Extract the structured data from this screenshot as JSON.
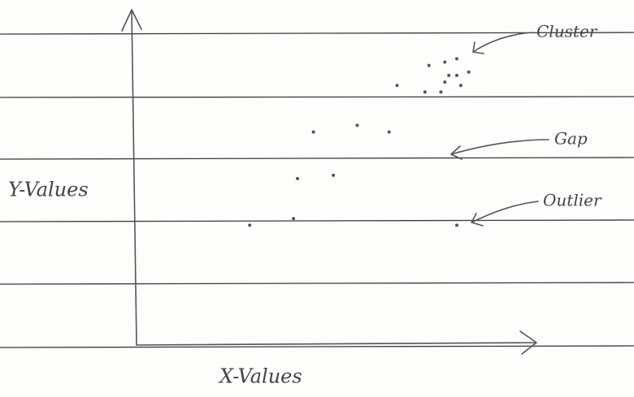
{
  "chart_data": {
    "type": "scatter",
    "x_label": "X-Values",
    "y_label": "Y-Values",
    "xlim": [
      0,
      100
    ],
    "ylim": [
      0,
      100
    ],
    "color": "#555555",
    "x": [
      73,
      77,
      80,
      78,
      80,
      83,
      77,
      81,
      65,
      72,
      76,
      44,
      55,
      63,
      40,
      49,
      28,
      39,
      80
    ],
    "y": [
      84,
      85,
      86,
      81,
      81,
      82,
      79,
      78,
      78,
      76,
      76,
      64,
      66,
      64,
      50,
      51,
      36,
      38,
      36
    ],
    "annotations": [
      "Cluster",
      "Gap",
      "Outlier"
    ]
  }
}
